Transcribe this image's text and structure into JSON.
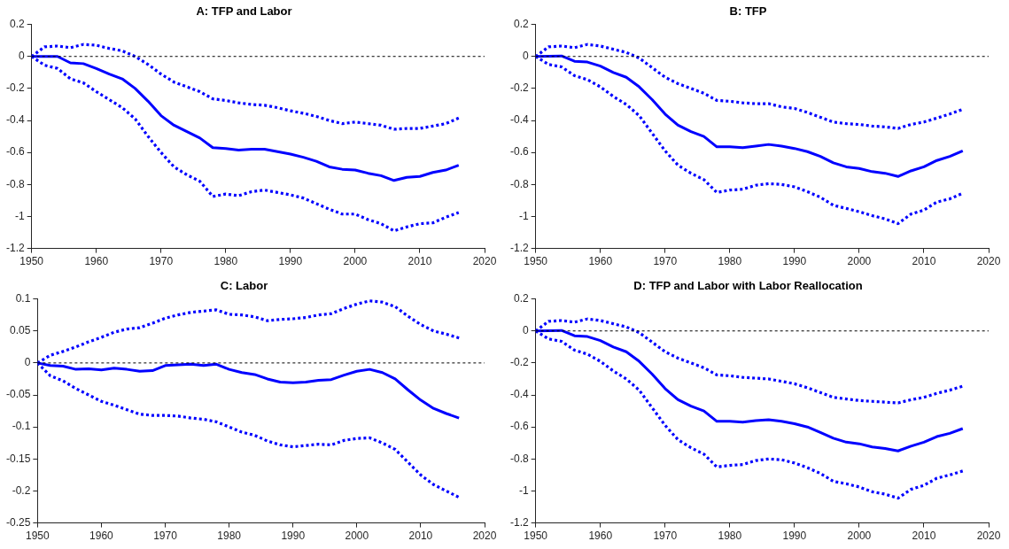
{
  "chart_data": [
    {
      "type": "line",
      "title": "A: TFP and Labor",
      "x": [
        1950,
        1952,
        1954,
        1956,
        1958,
        1960,
        1962,
        1964,
        1966,
        1968,
        1970,
        1972,
        1974,
        1976,
        1978,
        1980,
        1982,
        1984,
        1986,
        1988,
        1990,
        1992,
        1994,
        1996,
        1998,
        2000,
        2002,
        2004,
        2006,
        2008,
        2010,
        2012,
        2014,
        2016
      ],
      "xlim": [
        1950,
        2020
      ],
      "xticks": [
        1950,
        1960,
        1970,
        1980,
        1990,
        2000,
        2010,
        2020
      ],
      "ylim": [
        -1.2,
        0.2
      ],
      "yticks": [
        -1.2,
        -1,
        -0.8,
        -0.6,
        -0.4,
        -0.2,
        0,
        0.2
      ],
      "grid": false,
      "legend": false,
      "marker": "none",
      "ref_lines": [
        {
          "axis": "y",
          "value": 0,
          "color": "#000000",
          "line_style": "dotted"
        }
      ],
      "series": [
        {
          "color": "#0000ff",
          "line_style": "solid",
          "values": [
            0,
            0,
            0,
            -0.04,
            -0.045,
            -0.075,
            -0.11,
            -0.14,
            -0.2,
            -0.28,
            -0.37,
            -0.43,
            -0.47,
            -0.51,
            -0.57,
            -0.575,
            -0.585,
            -0.58,
            -0.58,
            -0.595,
            -0.61,
            -0.63,
            -0.655,
            -0.69,
            -0.705,
            -0.71,
            -0.73,
            -0.745,
            -0.775,
            -0.755,
            -0.75,
            -0.725,
            -0.71,
            -0.68
          ]
        },
        {
          "color": "#0000ff",
          "line_style": "dotted",
          "values": [
            0,
            0.06,
            0.065,
            0.055,
            0.075,
            0.07,
            0.05,
            0.035,
            0,
            -0.05,
            -0.11,
            -0.16,
            -0.19,
            -0.22,
            -0.265,
            -0.275,
            -0.29,
            -0.3,
            -0.305,
            -0.32,
            -0.34,
            -0.355,
            -0.375,
            -0.4,
            -0.42,
            -0.41,
            -0.42,
            -0.43,
            -0.455,
            -0.45,
            -0.45,
            -0.435,
            -0.42,
            -0.385
          ]
        },
        {
          "color": "#0000ff",
          "line_style": "dotted",
          "values": [
            0,
            -0.055,
            -0.075,
            -0.14,
            -0.165,
            -0.22,
            -0.27,
            -0.32,
            -0.39,
            -0.5,
            -0.6,
            -0.69,
            -0.74,
            -0.78,
            -0.875,
            -0.86,
            -0.87,
            -0.845,
            -0.835,
            -0.85,
            -0.865,
            -0.885,
            -0.92,
            -0.955,
            -0.985,
            -0.985,
            -1.02,
            -1.045,
            -1.09,
            -1.065,
            -1.045,
            -1.04,
            -1.005,
            -0.975
          ]
        }
      ]
    },
    {
      "type": "line",
      "title": "B: TFP",
      "x": [
        1950,
        1952,
        1954,
        1956,
        1958,
        1960,
        1962,
        1964,
        1966,
        1968,
        1970,
        1972,
        1974,
        1976,
        1978,
        1980,
        1982,
        1984,
        1986,
        1988,
        1990,
        1992,
        1994,
        1996,
        1998,
        2000,
        2002,
        2004,
        2006,
        2008,
        2010,
        2012,
        2014,
        2016
      ],
      "xlim": [
        1950,
        2020
      ],
      "xticks": [
        1950,
        1960,
        1970,
        1980,
        1990,
        2000,
        2010,
        2020
      ],
      "ylim": [
        -1.2,
        0.2
      ],
      "yticks": [
        -1.2,
        -1,
        -0.8,
        -0.6,
        -0.4,
        -0.2,
        0,
        0.2
      ],
      "grid": false,
      "legend": false,
      "marker": "none",
      "ref_lines": [
        {
          "axis": "y",
          "value": 0,
          "color": "#000000",
          "line_style": "dotted"
        }
      ],
      "series": [
        {
          "color": "#0000ff",
          "line_style": "solid",
          "values": [
            0,
            0.002,
            0.003,
            -0.03,
            -0.035,
            -0.06,
            -0.1,
            -0.13,
            -0.19,
            -0.27,
            -0.36,
            -0.43,
            -0.47,
            -0.5,
            -0.565,
            -0.565,
            -0.57,
            -0.56,
            -0.55,
            -0.56,
            -0.575,
            -0.595,
            -0.625,
            -0.665,
            -0.69,
            -0.7,
            -0.72,
            -0.73,
            -0.75,
            -0.715,
            -0.69,
            -0.65,
            -0.625,
            -0.59
          ]
        },
        {
          "color": "#0000ff",
          "line_style": "dotted",
          "values": [
            0,
            0.06,
            0.065,
            0.055,
            0.075,
            0.065,
            0.045,
            0.025,
            -0.01,
            -0.07,
            -0.13,
            -0.17,
            -0.2,
            -0.23,
            -0.275,
            -0.28,
            -0.29,
            -0.295,
            -0.295,
            -0.315,
            -0.325,
            -0.35,
            -0.38,
            -0.41,
            -0.42,
            -0.425,
            -0.435,
            -0.44,
            -0.45,
            -0.425,
            -0.41,
            -0.385,
            -0.36,
            -0.33
          ]
        },
        {
          "color": "#0000ff",
          "line_style": "dotted",
          "values": [
            0,
            -0.05,
            -0.065,
            -0.12,
            -0.145,
            -0.19,
            -0.25,
            -0.3,
            -0.37,
            -0.48,
            -0.59,
            -0.68,
            -0.73,
            -0.77,
            -0.85,
            -0.835,
            -0.83,
            -0.805,
            -0.795,
            -0.8,
            -0.815,
            -0.845,
            -0.88,
            -0.93,
            -0.95,
            -0.97,
            -0.995,
            -1.015,
            -1.045,
            -0.985,
            -0.96,
            -0.91,
            -0.89,
            -0.855
          ]
        }
      ]
    },
    {
      "type": "line",
      "title": "C: Labor",
      "x": [
        1950,
        1952,
        1954,
        1956,
        1958,
        1960,
        1962,
        1964,
        1966,
        1968,
        1970,
        1972,
        1974,
        1976,
        1978,
        1980,
        1982,
        1984,
        1986,
        1988,
        1990,
        1992,
        1994,
        1996,
        1998,
        2000,
        2002,
        2004,
        2006,
        2008,
        2010,
        2012,
        2014,
        2016
      ],
      "xlim": [
        1950,
        2020
      ],
      "xticks": [
        1950,
        1960,
        1970,
        1980,
        1990,
        2000,
        2010,
        2020
      ],
      "ylim": [
        -0.25,
        0.1
      ],
      "yticks": [
        -0.25,
        -0.2,
        -0.15,
        -0.1,
        -0.05,
        0,
        0.05,
        0.1
      ],
      "grid": false,
      "legend": false,
      "marker": "none",
      "ref_lines": [
        {
          "axis": "y",
          "value": 0,
          "color": "#000000",
          "line_style": "dotted"
        }
      ],
      "series": [
        {
          "color": "#0000ff",
          "line_style": "solid",
          "values": [
            0,
            -0.004,
            -0.005,
            -0.01,
            -0.009,
            -0.011,
            -0.008,
            -0.01,
            -0.013,
            -0.012,
            -0.004,
            -0.003,
            -0.002,
            -0.004,
            -0.002,
            -0.01,
            -0.015,
            -0.018,
            -0.025,
            -0.03,
            -0.031,
            -0.03,
            -0.027,
            -0.026,
            -0.019,
            -0.013,
            -0.01,
            -0.015,
            -0.025,
            -0.042,
            -0.058,
            -0.071,
            -0.079,
            -0.086
          ]
        },
        {
          "color": "#0000ff",
          "line_style": "dotted",
          "values": [
            0,
            0.012,
            0.018,
            0.025,
            0.033,
            0.04,
            0.048,
            0.053,
            0.055,
            0.062,
            0.07,
            0.075,
            0.079,
            0.081,
            0.083,
            0.076,
            0.075,
            0.072,
            0.066,
            0.068,
            0.069,
            0.071,
            0.075,
            0.077,
            0.085,
            0.092,
            0.097,
            0.095,
            0.088,
            0.073,
            0.06,
            0.05,
            0.045,
            0.039
          ]
        },
        {
          "color": "#0000ff",
          "line_style": "dotted",
          "values": [
            0,
            -0.02,
            -0.028,
            -0.04,
            -0.05,
            -0.06,
            -0.066,
            -0.073,
            -0.08,
            -0.082,
            -0.082,
            -0.083,
            -0.086,
            -0.088,
            -0.092,
            -0.1,
            -0.108,
            -0.113,
            -0.122,
            -0.128,
            -0.131,
            -0.129,
            -0.127,
            -0.128,
            -0.121,
            -0.118,
            -0.117,
            -0.125,
            -0.135,
            -0.155,
            -0.175,
            -0.19,
            -0.2,
            -0.21
          ]
        }
      ]
    },
    {
      "type": "line",
      "title": "D: TFP and Labor with Labor Reallocation",
      "x": [
        1950,
        1952,
        1954,
        1956,
        1958,
        1960,
        1962,
        1964,
        1966,
        1968,
        1970,
        1972,
        1974,
        1976,
        1978,
        1980,
        1982,
        1984,
        1986,
        1988,
        1990,
        1992,
        1994,
        1996,
        1998,
        2000,
        2002,
        2004,
        2006,
        2008,
        2010,
        2012,
        2014,
        2016
      ],
      "xlim": [
        1950,
        2020
      ],
      "xticks": [
        1950,
        1960,
        1970,
        1980,
        1990,
        2000,
        2010,
        2020
      ],
      "ylim": [
        -1.2,
        0.2
      ],
      "yticks": [
        -1.2,
        -1,
        -0.8,
        -0.6,
        -0.4,
        -0.2,
        0,
        0.2
      ],
      "grid": false,
      "legend": false,
      "marker": "none",
      "ref_lines": [
        {
          "axis": "y",
          "value": 0,
          "color": "#000000",
          "line_style": "dotted"
        }
      ],
      "series": [
        {
          "color": "#0000ff",
          "line_style": "solid",
          "values": [
            0,
            0.002,
            0.003,
            -0.03,
            -0.035,
            -0.06,
            -0.1,
            -0.13,
            -0.19,
            -0.27,
            -0.36,
            -0.43,
            -0.47,
            -0.5,
            -0.565,
            -0.565,
            -0.57,
            -0.56,
            -0.555,
            -0.565,
            -0.58,
            -0.6,
            -0.635,
            -0.67,
            -0.695,
            -0.705,
            -0.725,
            -0.735,
            -0.75,
            -0.72,
            -0.695,
            -0.66,
            -0.64,
            -0.61
          ]
        },
        {
          "color": "#0000ff",
          "line_style": "dotted",
          "values": [
            0,
            0.06,
            0.065,
            0.055,
            0.075,
            0.065,
            0.045,
            0.025,
            -0.01,
            -0.07,
            -0.13,
            -0.17,
            -0.2,
            -0.23,
            -0.275,
            -0.28,
            -0.29,
            -0.295,
            -0.3,
            -0.315,
            -0.33,
            -0.355,
            -0.385,
            -0.415,
            -0.425,
            -0.435,
            -0.44,
            -0.445,
            -0.45,
            -0.43,
            -0.415,
            -0.39,
            -0.37,
            -0.345
          ]
        },
        {
          "color": "#0000ff",
          "line_style": "dotted",
          "values": [
            0,
            -0.05,
            -0.065,
            -0.12,
            -0.145,
            -0.19,
            -0.25,
            -0.3,
            -0.37,
            -0.48,
            -0.59,
            -0.68,
            -0.73,
            -0.77,
            -0.85,
            -0.84,
            -0.835,
            -0.81,
            -0.8,
            -0.805,
            -0.825,
            -0.855,
            -0.89,
            -0.94,
            -0.955,
            -0.975,
            -1.005,
            -1.02,
            -1.045,
            -0.99,
            -0.965,
            -0.92,
            -0.9,
            -0.875
          ]
        }
      ]
    }
  ]
}
